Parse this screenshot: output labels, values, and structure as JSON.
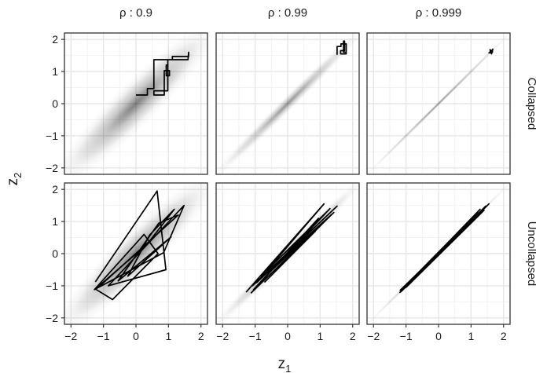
{
  "chart_data": {
    "type": "line",
    "layout": "facet-grid",
    "xlabel": "z",
    "xlabel_subscript": "1",
    "ylabel": "z",
    "ylabel_subscript": "2",
    "xlim": [
      -2.2,
      2.2
    ],
    "ylim": [
      -2.2,
      2.2
    ],
    "x_ticks": [
      -2,
      -1,
      0,
      1,
      2
    ],
    "y_ticks": [
      -2,
      -1,
      0,
      1,
      2
    ],
    "x_tick_labels": [
      "−2",
      "−1",
      "0",
      "1",
      "2"
    ],
    "y_tick_labels": [
      "−2",
      "−1",
      "0",
      "1",
      "2"
    ],
    "grid": true,
    "column_labels": [
      "ρ : 0.9",
      "ρ : 0.99",
      "ρ : 0.999"
    ],
    "row_labels": [
      "Collapsed",
      "Uncollapsed"
    ],
    "density_background": {
      "kind": "bivariate-normal",
      "correlations": [
        0.9,
        0.99,
        0.999
      ],
      "color": "#000000"
    },
    "trace_color": "#000000",
    "panels": [
      {
        "row": "Collapsed",
        "rho": 0.9,
        "trace": [
          [
            0.0,
            0.27
          ],
          [
            0.35,
            0.27
          ],
          [
            0.35,
            0.47
          ],
          [
            0.55,
            0.47
          ],
          [
            0.55,
            1.37
          ],
          [
            1.12,
            1.37
          ],
          [
            1.12,
            1.47
          ],
          [
            1.62,
            1.47
          ],
          [
            1.62,
            1.6
          ],
          [
            1.6,
            1.37
          ],
          [
            0.98,
            1.37
          ],
          [
            0.98,
            0.4
          ],
          [
            0.55,
            0.4
          ],
          [
            0.55,
            0.27
          ],
          [
            0.87,
            0.27
          ],
          [
            0.87,
            1.03
          ],
          [
            1.03,
            1.03
          ],
          [
            1.03,
            0.87
          ],
          [
            0.93,
            0.87
          ],
          [
            0.93,
            1.2
          ],
          [
            1.0,
            1.2
          ]
        ]
      },
      {
        "row": "Collapsed",
        "rho": 0.99,
        "trace": [
          [
            1.52,
            1.52
          ],
          [
            1.52,
            1.78
          ],
          [
            1.64,
            1.78
          ],
          [
            1.64,
            1.86
          ],
          [
            1.8,
            1.86
          ],
          [
            1.8,
            1.55
          ],
          [
            1.63,
            1.55
          ],
          [
            1.63,
            1.65
          ],
          [
            1.75,
            1.65
          ],
          [
            1.75,
            1.95
          ],
          [
            1.72,
            1.95
          ],
          [
            1.72,
            1.6
          ],
          [
            1.78,
            1.6
          ]
        ]
      },
      {
        "row": "Collapsed",
        "rho": 0.999,
        "trace": [
          [
            1.57,
            1.57
          ],
          [
            1.6,
            1.66
          ],
          [
            1.62,
            1.6
          ],
          [
            1.67,
            1.7
          ],
          [
            1.63,
            1.55
          ],
          [
            1.58,
            1.68
          ],
          [
            1.65,
            1.64
          ],
          [
            1.55,
            1.58
          ],
          [
            1.68,
            1.62
          ]
        ]
      },
      {
        "row": "Uncollapsed",
        "rho": 0.9,
        "trace": [
          [
            -1.25,
            -0.88
          ],
          [
            0.65,
            1.95
          ],
          [
            0.92,
            -0.5
          ],
          [
            -0.85,
            -1.0
          ],
          [
            1.48,
            1.5
          ],
          [
            0.85,
            0.03
          ],
          [
            -1.28,
            -1.12
          ],
          [
            0.25,
            0.6
          ],
          [
            0.68,
            0.0
          ],
          [
            -0.72,
            -1.43
          ],
          [
            -1.25,
            -1.1
          ],
          [
            0.35,
            0.3
          ],
          [
            1.18,
            1.38
          ],
          [
            0.42,
            0.58
          ],
          [
            -0.25,
            -0.7
          ],
          [
            1.08,
            0.52
          ],
          [
            -0.55,
            -0.85
          ],
          [
            0.7,
            0.95
          ],
          [
            1.3,
            1.2
          ],
          [
            -1.1,
            -1.0
          ]
        ]
      },
      {
        "row": "Uncollapsed",
        "rho": 0.99,
        "trace": [
          [
            -1.28,
            -1.2
          ],
          [
            1.12,
            1.55
          ],
          [
            -0.95,
            -0.9
          ],
          [
            1.52,
            1.48
          ],
          [
            -1.08,
            -1.0
          ],
          [
            1.35,
            1.22
          ],
          [
            -0.7,
            -0.88
          ],
          [
            0.85,
            0.7
          ],
          [
            -0.82,
            -0.7
          ],
          [
            1.3,
            1.4
          ],
          [
            -1.05,
            -1.12
          ],
          [
            0.95,
            1.1
          ],
          [
            -1.12,
            -1.22
          ],
          [
            1.42,
            1.28
          ],
          [
            -0.6,
            -0.62
          ],
          [
            1.18,
            1.05
          ]
        ]
      },
      {
        "row": "Uncollapsed",
        "rho": 0.999,
        "trace": [
          [
            -1.2,
            -1.22
          ],
          [
            1.28,
            1.38
          ],
          [
            -1.05,
            -1.06
          ],
          [
            1.55,
            1.55
          ],
          [
            -1.15,
            -1.18
          ],
          [
            1.4,
            1.35
          ],
          [
            -0.9,
            -0.95
          ],
          [
            1.2,
            1.28
          ],
          [
            -1.1,
            -1.08
          ],
          [
            1.45,
            1.48
          ],
          [
            -1.0,
            -1.05
          ],
          [
            1.3,
            1.25
          ],
          [
            -1.18,
            -1.14
          ],
          [
            1.5,
            1.5
          ]
        ]
      }
    ]
  }
}
